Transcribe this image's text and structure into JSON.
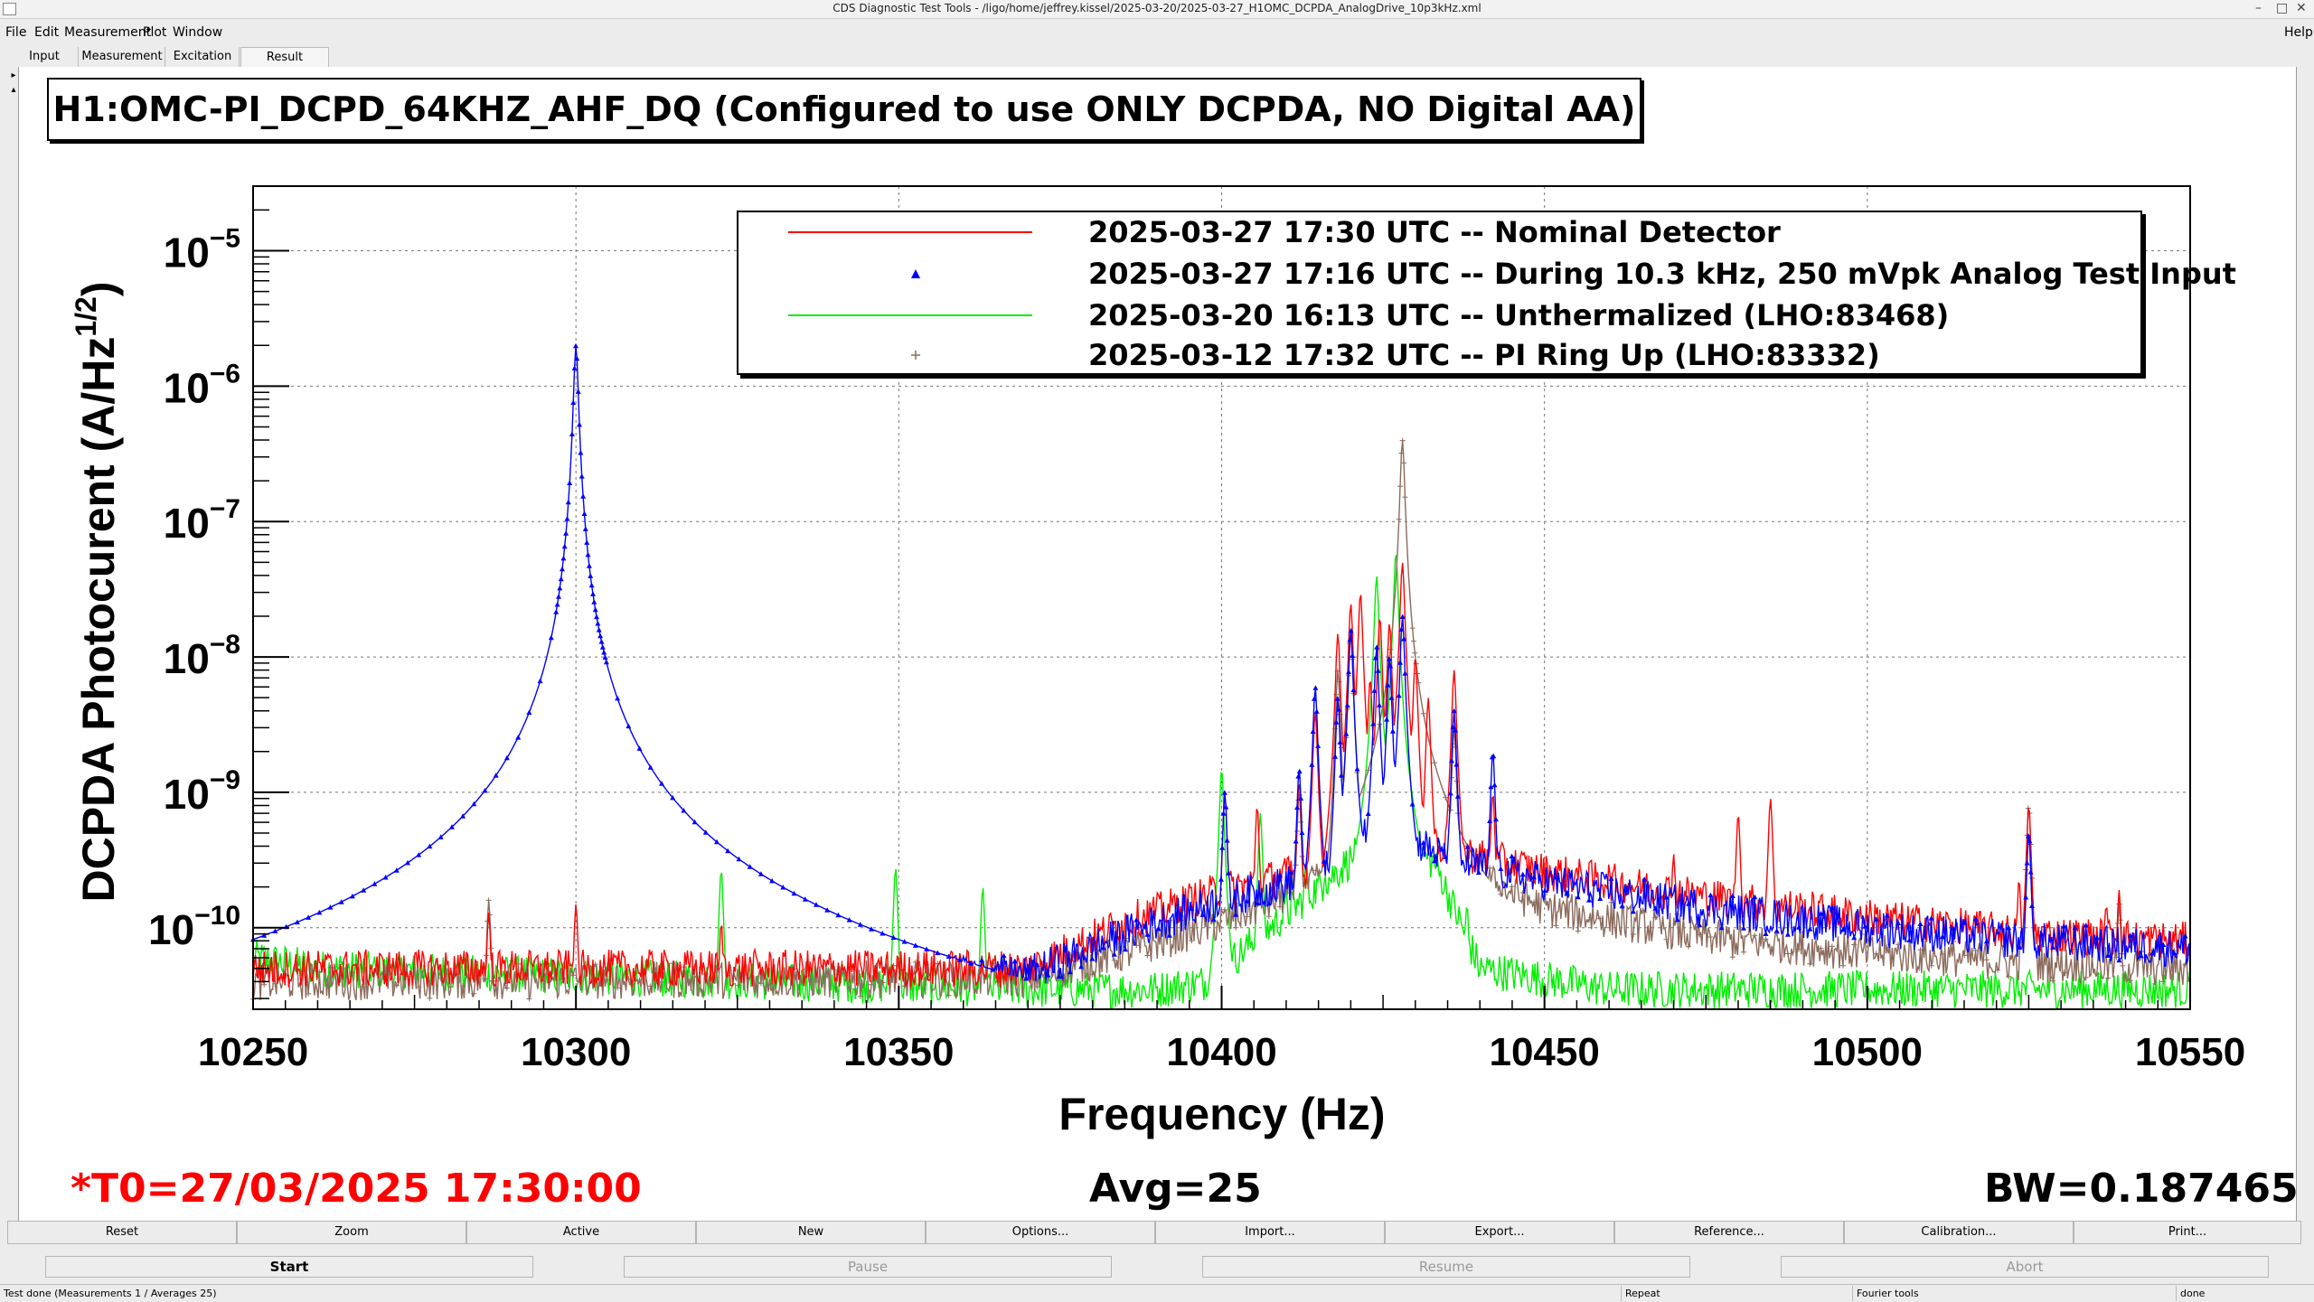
{
  "window": {
    "title": "CDS Diagnostic Test Tools - /ligo/home/jeffrey.kissel/2025-03-20/2025-03-27_H1OMC_DCPDA_AnalogDrive_10p3kHz.xml",
    "controls": [
      "–",
      "□",
      "✕"
    ]
  },
  "menu": {
    "items": [
      "File",
      "Edit",
      "Measurement",
      "Plot",
      "Window"
    ],
    "help": "Help"
  },
  "tabs": [
    {
      "label": "Input"
    },
    {
      "label": "Measurement"
    },
    {
      "label": "Excitation"
    },
    {
      "label": "Result"
    }
  ],
  "plot_title": "H1:OMC-PI_DCPD_64KHZ_AHF_DQ (Configured to use ONLY DCPDA, NO Digital AA)",
  "chart_data": {
    "type": "line",
    "xlabel": "Frequency (Hz)",
    "ylabel": "DCPDA Photocurent (A/Hz",
    "ylabel_sup": "1/2",
    "ylabel_tail": ")",
    "yscale": "log",
    "xlim": [
      10250,
      10550
    ],
    "ylim": [
      2.5e-11,
      3e-05
    ],
    "x_ticks": [
      10250,
      10300,
      10350,
      10400,
      10450,
      10500,
      10550
    ],
    "y_ticks": [
      {
        "value": 1e-10,
        "base": "10",
        "exp": "−10"
      },
      {
        "value": 1e-09,
        "base": "10",
        "exp": "−9"
      },
      {
        "value": 1e-08,
        "base": "10",
        "exp": "−8"
      },
      {
        "value": 1e-07,
        "base": "10",
        "exp": "−7"
      },
      {
        "value": 1e-06,
        "base": "10",
        "exp": "−6"
      },
      {
        "value": 1e-05,
        "base": "10",
        "exp": "−5"
      }
    ],
    "grid": true,
    "legend_position": "top-right",
    "series": [
      {
        "name": "2025-03-27 17:30 UTC -- Nominal Detector",
        "color": "#ff0000",
        "style": "line",
        "floor": [
          [
            10250,
            5e-11
          ],
          [
            10370,
            5e-11
          ],
          [
            10385,
            1.1e-10
          ],
          [
            10400,
            1.9e-10
          ],
          [
            10415,
            2.8e-10
          ],
          [
            10425,
            7e-10
          ],
          [
            10435,
            3.8e-10
          ],
          [
            10450,
            2.6e-10
          ],
          [
            10475,
            1.7e-10
          ],
          [
            10500,
            1.2e-10
          ],
          [
            10525,
            9e-11
          ],
          [
            10550,
            8e-11
          ]
        ],
        "peaks": [
          [
            10286.5,
            1.3e-10
          ],
          [
            10300,
            1.5e-10
          ],
          [
            10322.5,
            1.1e-10
          ],
          [
            10400.5,
            1e-09
          ],
          [
            10405.5,
            8e-10
          ],
          [
            10412,
            1.2e-09
          ],
          [
            10414.5,
            4e-09
          ],
          [
            10418,
            1.5e-08
          ],
          [
            10420,
            2.5e-08
          ],
          [
            10421.5,
            3e-08
          ],
          [
            10423,
            7e-09
          ],
          [
            10424.5,
            2e-08
          ],
          [
            10426,
            1.8e-08
          ],
          [
            10428,
            5e-08
          ],
          [
            10430,
            1e-08
          ],
          [
            10432,
            5e-09
          ],
          [
            10436,
            8e-09
          ],
          [
            10442,
            1e-09
          ],
          [
            10460,
            3e-10
          ],
          [
            10470,
            3.5e-10
          ],
          [
            10480,
            7e-10
          ],
          [
            10485,
            9e-10
          ],
          [
            10523.5,
            2.3e-10
          ],
          [
            10525,
            8e-10
          ],
          [
            10537,
            1.5e-10
          ],
          [
            10539,
            1.9e-10
          ]
        ]
      },
      {
        "name": "2025-03-27 17:16 UTC -- During 10.3 kHz, 250 mVpk Analog Test Input",
        "color": "#0000ff",
        "style": "markers",
        "floor": [
          [
            10250,
            4.5e-11
          ],
          [
            10370,
            4.5e-11
          ],
          [
            10385,
            9e-11
          ],
          [
            10400,
            1.6e-10
          ],
          [
            10415,
            2.4e-10
          ],
          [
            10425,
            6e-10
          ],
          [
            10435,
            3.2e-10
          ],
          [
            10450,
            2.2e-10
          ],
          [
            10475,
            1.4e-10
          ],
          [
            10500,
            1e-10
          ],
          [
            10525,
            8e-11
          ],
          [
            10550,
            7e-11
          ]
        ],
        "peaks": [
          [
            10300,
            2e-06
          ],
          [
            10301,
            7e-08
          ],
          [
            10302,
            2.5e-09
          ],
          [
            10303,
            5e-10
          ],
          [
            10304,
            1.5e-10
          ],
          [
            10298.5,
            2e-08
          ],
          [
            10297.5,
            6e-10
          ],
          [
            10400.5,
            1e-09
          ],
          [
            10412,
            1.5e-09
          ],
          [
            10414.5,
            6e-09
          ],
          [
            10418,
            5e-09
          ],
          [
            10420,
            1.6e-08
          ],
          [
            10424,
            1.2e-08
          ],
          [
            10426,
            1e-08
          ],
          [
            10428,
            2e-08
          ],
          [
            10436,
            4e-09
          ],
          [
            10442,
            2e-09
          ],
          [
            10525,
            5e-10
          ]
        ]
      },
      {
        "name": "2025-03-20 16:13 UTC -- Unthermalized (LHO:83468)",
        "color": "#00ee00",
        "style": "line",
        "floor": [
          [
            10250,
            6e-11
          ],
          [
            10260,
            5e-11
          ],
          [
            10370,
            3.5e-11
          ],
          [
            10390,
            3.5e-11
          ],
          [
            10398,
            4e-11
          ],
          [
            10405,
            8e-11
          ],
          [
            10415,
            2e-10
          ],
          [
            10425,
            5e-10
          ],
          [
            10433,
            3e-10
          ],
          [
            10440,
            5e-11
          ],
          [
            10460,
            3.5e-11
          ],
          [
            10500,
            3.5e-11
          ],
          [
            10550,
            3.5e-11
          ]
        ],
        "peaks": [
          [
            10322.5,
            2.7e-10
          ],
          [
            10349.5,
            2.8e-10
          ],
          [
            10363,
            2e-10
          ],
          [
            10400,
            1.5e-09
          ],
          [
            10406,
            7e-10
          ],
          [
            10410,
            2e-10
          ],
          [
            10413,
            3e-10
          ],
          [
            10416,
            2.5e-10
          ],
          [
            10419,
            3e-10
          ],
          [
            10422,
            3e-10
          ],
          [
            10424,
            4e-08
          ],
          [
            10427,
            6e-08
          ],
          [
            10431,
            2e-10
          ],
          [
            10434,
            2e-10
          ],
          [
            10438,
            1.5e-10
          ]
        ]
      },
      {
        "name": "2025-03-12 17:32 UTC -- PI Ring Up (LHO:83332)",
        "color": "#8b6b5d",
        "style": "plus",
        "floor": [
          [
            10250,
            4e-11
          ],
          [
            10370,
            4.2e-11
          ],
          [
            10385,
            6.5e-11
          ],
          [
            10400,
            1.1e-10
          ],
          [
            10415,
            2.2e-10
          ],
          [
            10425,
            6e-10
          ],
          [
            10435,
            3e-10
          ],
          [
            10450,
            1.4e-10
          ],
          [
            10475,
            8.5e-11
          ],
          [
            10500,
            6.5e-11
          ],
          [
            10525,
            5.5e-11
          ],
          [
            10550,
            5e-11
          ]
        ],
        "peaks": [
          [
            10286.5,
            1.6e-10
          ],
          [
            10412,
            1e-09
          ],
          [
            10418,
            8e-09
          ],
          [
            10420,
            1.5e-08
          ],
          [
            10428,
            4e-07
          ],
          [
            10430,
            1e-08
          ],
          [
            10436,
            3e-09
          ],
          [
            10525,
            8e-10
          ],
          [
            10539,
            1.5e-10
          ]
        ]
      }
    ]
  },
  "footer": {
    "t0": "*T0=27/03/2025 17:30:00",
    "avg": "Avg=25",
    "bw": "BW=0.187465"
  },
  "buttons_row1": [
    "Reset",
    "Zoom",
    "Active",
    "New",
    "Options...",
    "Import...",
    "Export...",
    "Reference...",
    "Calibration...",
    "Print..."
  ],
  "buttons_row2": [
    {
      "label": "Start",
      "enabled": true
    },
    {
      "label": "Pause",
      "enabled": false
    },
    {
      "label": "Resume",
      "enabled": false
    },
    {
      "label": "Abort",
      "enabled": false
    }
  ],
  "status": {
    "message": "Test done (Measurements 1 / Averages 25)",
    "mode": "Repeat",
    "tool": "Fourier tools",
    "state": "done"
  }
}
